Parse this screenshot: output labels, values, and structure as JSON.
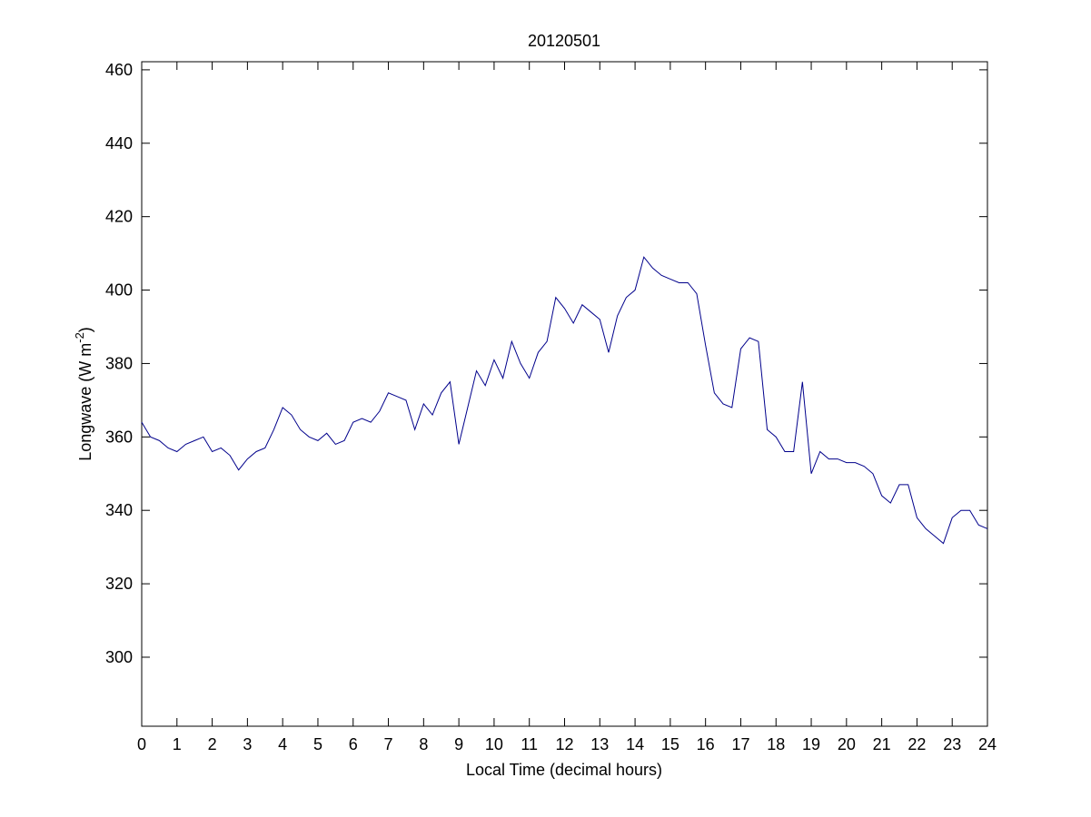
{
  "chart_data": {
    "type": "line",
    "title": "20120501",
    "xlabel": "Local Time (decimal hours)",
    "ylabel_parts": [
      "Longwave (W m",
      "-2",
      ")"
    ],
    "x": [
      0,
      0.25,
      0.5,
      0.75,
      1,
      1.25,
      1.5,
      1.75,
      2,
      2.25,
      2.5,
      2.75,
      3,
      3.25,
      3.5,
      3.75,
      4,
      4.25,
      4.5,
      4.75,
      5,
      5.25,
      5.5,
      5.75,
      6,
      6.25,
      6.5,
      6.75,
      7,
      7.25,
      7.5,
      7.75,
      8,
      8.25,
      8.5,
      8.75,
      9,
      9.25,
      9.5,
      9.75,
      10,
      10.25,
      10.5,
      10.75,
      11,
      11.25,
      11.5,
      11.75,
      12,
      12.25,
      12.5,
      12.75,
      13,
      13.25,
      13.5,
      13.75,
      14,
      14.25,
      14.5,
      14.75,
      15,
      15.25,
      15.5,
      15.75,
      16,
      16.25,
      16.5,
      16.75,
      17,
      17.25,
      17.5,
      17.75,
      18,
      18.25,
      18.5,
      18.75,
      19,
      19.25,
      19.5,
      19.75,
      20,
      20.25,
      20.5,
      20.75,
      21,
      21.25,
      21.5,
      21.75,
      22,
      22.25,
      22.5,
      22.75,
      23,
      23.25,
      23.5,
      23.75,
      24
    ],
    "series": [
      {
        "color": "#00008b",
        "values": [
          364,
          360,
          359,
          357,
          356,
          358,
          359,
          360,
          356,
          357,
          355,
          351,
          354,
          356,
          357,
          362,
          368,
          366,
          362,
          360,
          359,
          361,
          358,
          359,
          364,
          365,
          364,
          367,
          372,
          371,
          370,
          362,
          369,
          366,
          372,
          375,
          358,
          368,
          378,
          374,
          381,
          376,
          386,
          380,
          376,
          383,
          386,
          398,
          395,
          391,
          396,
          394,
          392,
          383,
          393,
          398,
          400,
          409,
          406,
          404,
          403,
          402,
          402,
          399,
          385,
          372,
          369,
          368,
          384,
          387,
          386,
          362,
          360,
          356,
          356,
          375,
          350,
          356,
          354,
          354,
          353,
          353,
          352,
          350,
          344,
          342,
          347,
          347,
          338,
          335,
          333,
          331,
          338,
          340,
          340,
          336,
          335
        ]
      }
    ],
    "xlim": [
      0,
      24
    ],
    "xticks": [
      0,
      1,
      2,
      3,
      4,
      5,
      6,
      7,
      8,
      9,
      10,
      11,
      12,
      13,
      14,
      15,
      16,
      17,
      18,
      19,
      20,
      21,
      22,
      23,
      24
    ],
    "ylim": [
      281.2,
      462.2
    ],
    "yticks": [
      300,
      320,
      340,
      360,
      380,
      400,
      420,
      440,
      460
    ]
  }
}
